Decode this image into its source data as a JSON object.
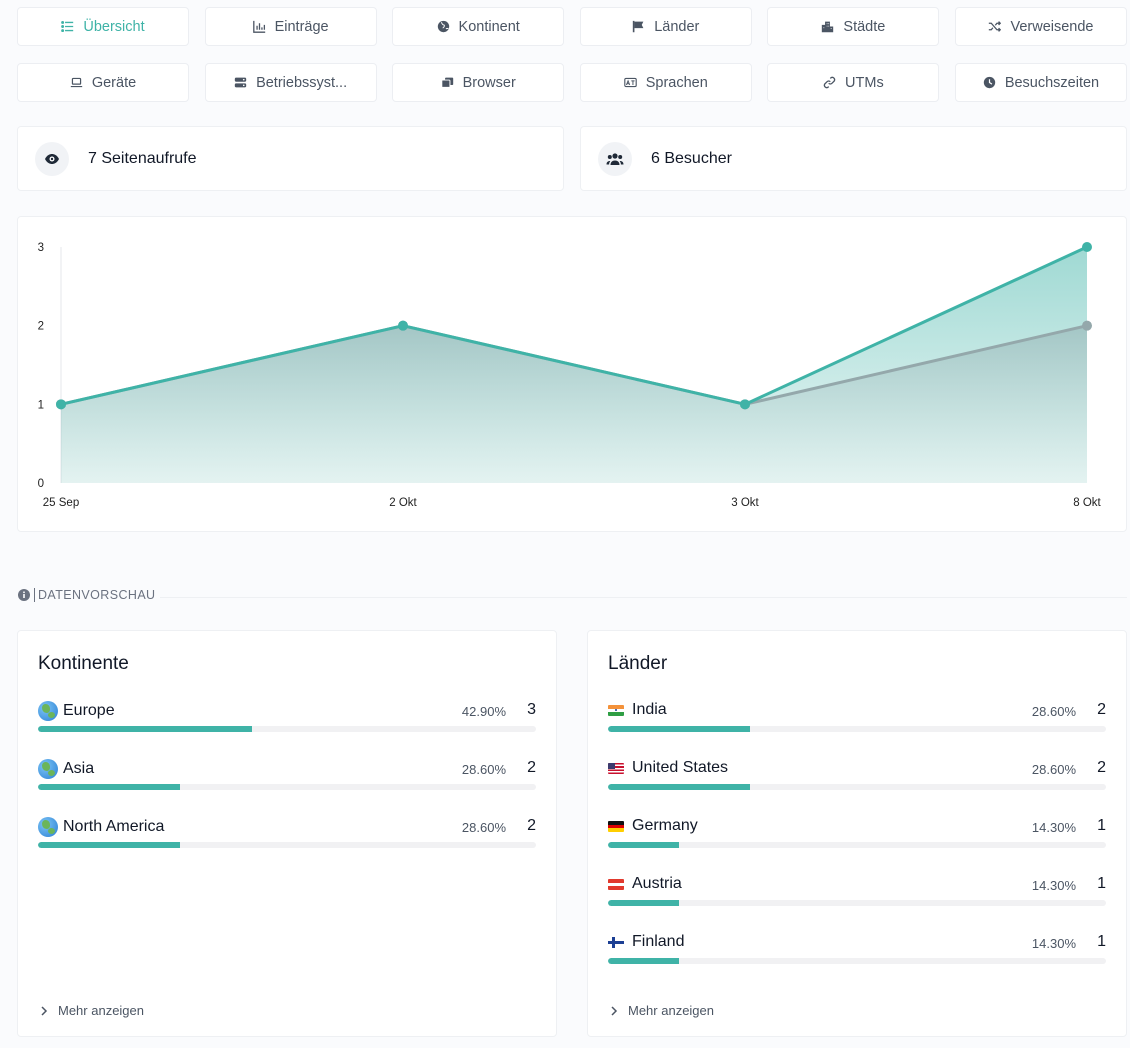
{
  "tabs_row1": [
    {
      "label": "Übersicht",
      "icon": "list-icon",
      "active": true
    },
    {
      "label": "Einträge",
      "icon": "bar-chart-icon"
    },
    {
      "label": "Kontinent",
      "icon": "globe-icon"
    },
    {
      "label": "Länder",
      "icon": "flag-icon"
    },
    {
      "label": "Städte",
      "icon": "city-icon"
    },
    {
      "label": "Verweisende",
      "icon": "shuffle-icon"
    }
  ],
  "tabs_row2": [
    {
      "label": "Geräte",
      "icon": "laptop-icon"
    },
    {
      "label": "Betriebssyst...",
      "icon": "server-icon"
    },
    {
      "label": "Browser",
      "icon": "windows-icon"
    },
    {
      "label": "Sprachen",
      "icon": "language-icon"
    },
    {
      "label": "UTMs",
      "icon": "link-icon"
    },
    {
      "label": "Besuchszeiten",
      "icon": "clock-icon"
    }
  ],
  "stats": {
    "pageviews": {
      "label": "7 Seitenaufrufe",
      "icon": "eye-icon"
    },
    "visitors": {
      "label": "6 Besucher",
      "icon": "users-icon"
    }
  },
  "chart_data": {
    "type": "area",
    "categories": [
      "25 Sep",
      "2 Okt",
      "3 Okt",
      "8 Okt"
    ],
    "y_ticks": [
      "0",
      "1",
      "2",
      "3"
    ],
    "ylim": [
      0,
      3
    ],
    "series": [
      {
        "values": [
          1,
          2,
          1,
          3
        ],
        "color": "#3fb3a7"
      },
      {
        "values": [
          1,
          2,
          1,
          2
        ],
        "color": "#94a8ab"
      }
    ],
    "grid": false
  },
  "section": {
    "title": "DATENVORSCHAU",
    "icon": "info-icon"
  },
  "continents": {
    "title": "Kontinente",
    "more": "Mehr anzeigen",
    "rows": [
      {
        "name": "Europe",
        "pct": "42.90%",
        "count": "3",
        "share": 0.429,
        "icon": "globe-europe-icon"
      },
      {
        "name": "Asia",
        "pct": "28.60%",
        "count": "2",
        "share": 0.286,
        "icon": "globe-asia-icon"
      },
      {
        "name": "North America",
        "pct": "28.60%",
        "count": "2",
        "share": 0.286,
        "icon": "globe-americas-icon"
      }
    ]
  },
  "countries": {
    "title": "Länder",
    "more": "Mehr anzeigen",
    "rows": [
      {
        "name": "India",
        "pct": "28.60%",
        "count": "2",
        "share": 0.286,
        "icon": "flag-india-icon"
      },
      {
        "name": "United States",
        "pct": "28.60%",
        "count": "2",
        "share": 0.286,
        "icon": "flag-usa-icon"
      },
      {
        "name": "Germany",
        "pct": "14.30%",
        "count": "1",
        "share": 0.143,
        "icon": "flag-germany-icon"
      },
      {
        "name": "Austria",
        "pct": "14.30%",
        "count": "1",
        "share": 0.143,
        "icon": "flag-austria-icon"
      },
      {
        "name": "Finland",
        "pct": "14.30%",
        "count": "1",
        "share": 0.143,
        "icon": "flag-finland-icon"
      }
    ]
  },
  "colors": {
    "accent": "#3fb3a7",
    "secondary": "#94a8ab"
  }
}
